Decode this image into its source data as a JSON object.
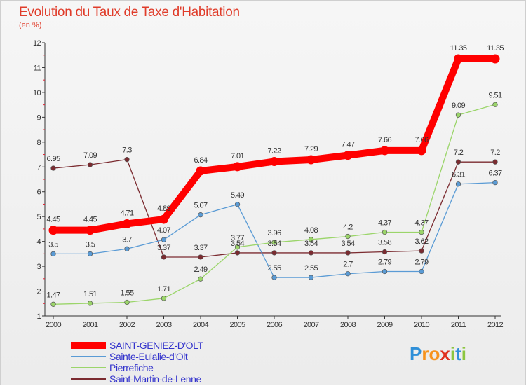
{
  "chart_data": {
    "type": "line",
    "title": "Evolution du Taux de Taxe d'Habitation",
    "subtitle": "(en %)",
    "xlabel": "",
    "ylabel": "",
    "x": [
      "2000",
      "2001",
      "2002",
      "2003",
      "2004",
      "2005",
      "2006",
      "2007",
      "2008",
      "2009",
      "2010",
      "2011",
      "2012"
    ],
    "ylim": [
      1,
      12
    ],
    "yticks": [
      "1",
      "2",
      "3",
      "4",
      "5",
      "6",
      "7",
      "8",
      "9",
      "10",
      "11",
      "12"
    ],
    "grid": false,
    "legend_position": "bottom-left",
    "series": [
      {
        "name": "SAINT-GENIEZ-D'OLT",
        "color": "#ff0000",
        "values": [
          4.45,
          4.45,
          4.71,
          4.89,
          6.84,
          7.01,
          7.22,
          7.29,
          7.47,
          7.66,
          7.66,
          11.35,
          11.35
        ],
        "labels": [
          "4.45",
          "4.45",
          "4.71",
          "4.89",
          "6.84",
          "7.01",
          "7.22",
          "7.29",
          "7.47",
          "7.66",
          "7.66",
          "11.35",
          "11.35"
        ]
      },
      {
        "name": "Sainte-Eulalie-d'Olt",
        "color": "#5a9bd5",
        "values": [
          3.5,
          3.5,
          3.7,
          4.07,
          5.07,
          5.49,
          2.55,
          2.55,
          2.7,
          2.79,
          2.79,
          6.31,
          6.37
        ],
        "labels": [
          "3.5",
          "3.5",
          "3.7",
          "4.07",
          "5.07",
          "5.49",
          "2.55",
          "2.55",
          "2.7",
          "2.79",
          "2.79",
          "6.31",
          "6.37"
        ]
      },
      {
        "name": "Pierrefiche",
        "color": "#9bd56a",
        "values": [
          1.47,
          1.51,
          1.55,
          1.71,
          2.49,
          3.77,
          3.96,
          4.08,
          4.2,
          4.37,
          4.37,
          9.09,
          9.51
        ],
        "labels": [
          "1.47",
          "1.51",
          "1.55",
          "1.71",
          "2.49",
          "3.77",
          "3.96",
          "4.08",
          "4.2",
          "4.37",
          "4.37",
          "9.09",
          "9.51"
        ]
      },
      {
        "name": "Saint-Martin-de-Lenne",
        "color": "#7b2b30",
        "values": [
          6.95,
          7.09,
          7.3,
          3.37,
          3.37,
          3.54,
          3.54,
          3.54,
          3.54,
          3.58,
          3.62,
          7.2,
          7.2
        ],
        "labels": [
          "6.95",
          "7.09",
          "7.3",
          "3.37",
          "3.37",
          "3.54",
          "3.54",
          "3.54",
          "3.54",
          "3.58",
          "3.62",
          "7.2",
          "7.2"
        ]
      }
    ]
  },
  "legend": {
    "items": [
      {
        "label": "SAINT-GENIEZ-D'OLT",
        "color": "#ff0000"
      },
      {
        "label": "Sainte-Eulalie-d'Olt",
        "color": "#5a9bd5"
      },
      {
        "label": "Pierrefiche",
        "color": "#9bd56a"
      },
      {
        "label": "Saint-Martin-de-Lenne",
        "color": "#7b2b30"
      }
    ]
  },
  "brand": {
    "letters": [
      "P",
      "r",
      "o",
      "x",
      "i",
      "t",
      "i"
    ],
    "colors": [
      "#2f8fd8",
      "#f7931e",
      "#f7931e",
      "#e0301e",
      "#8cc63f",
      "#2f8fd8",
      "#8cc63f"
    ]
  }
}
